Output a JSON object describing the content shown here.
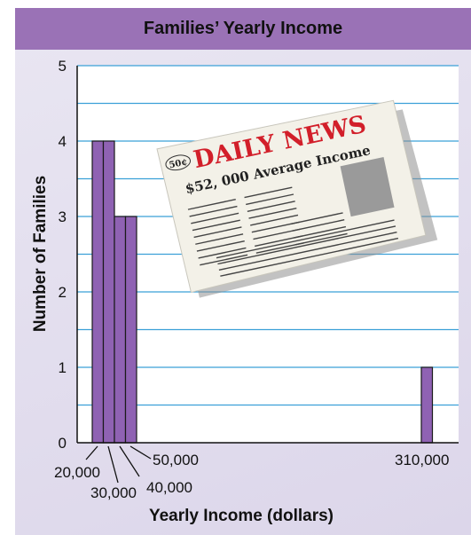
{
  "chart_data": {
    "type": "bar",
    "title": "Families’ Yearly Income",
    "xlabel": "Yearly Income (dollars)",
    "ylabel": "Number of Families",
    "ylim": [
      0,
      5
    ],
    "yticks": [
      "0",
      "1",
      "2",
      "3",
      "4",
      "5"
    ],
    "grid": true,
    "categories": [
      "20,000",
      "30,000",
      "40,000",
      "50,000",
      "310,000"
    ],
    "values": [
      4,
      4,
      3,
      3,
      1
    ],
    "bar_color": "#8f62b3",
    "grid_color": "#3ba0d8",
    "title_bar_color": "#9a72b6"
  },
  "newspaper": {
    "masthead": "DAILY NEWS",
    "price": "50¢",
    "headline": "$52, 000 Average Income"
  }
}
